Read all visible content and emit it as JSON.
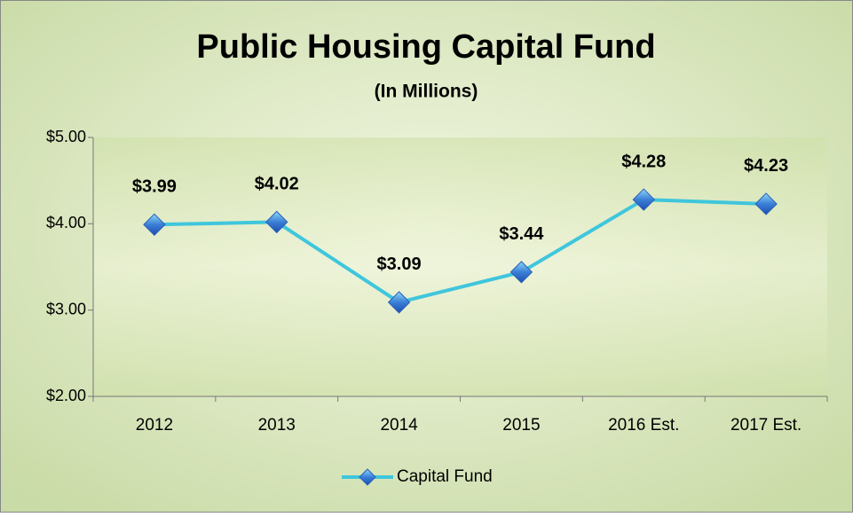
{
  "chart_data": {
    "type": "line",
    "title": "Public Housing Capital Fund",
    "subtitle": "(In Millions)",
    "categories": [
      "2012",
      "2013",
      "2014",
      "2015",
      "2016 Est.",
      "2017 Est."
    ],
    "series": [
      {
        "name": "Capital Fund",
        "color": "#3fc6dc",
        "values": [
          3.99,
          4.02,
          3.09,
          3.44,
          4.28,
          4.23
        ],
        "value_labels": [
          "$3.99",
          "$4.02",
          "$3.09",
          "$3.44",
          "$4.28",
          "$4.23"
        ]
      }
    ],
    "ylim": [
      2,
      5
    ],
    "yticks": [
      {
        "value": 2,
        "label": "$2.00"
      },
      {
        "value": 3,
        "label": "$3.00"
      },
      {
        "value": 4,
        "label": "$4.00"
      },
      {
        "value": 5,
        "label": "$5.00"
      }
    ],
    "grid": false,
    "legend": "bottom"
  }
}
